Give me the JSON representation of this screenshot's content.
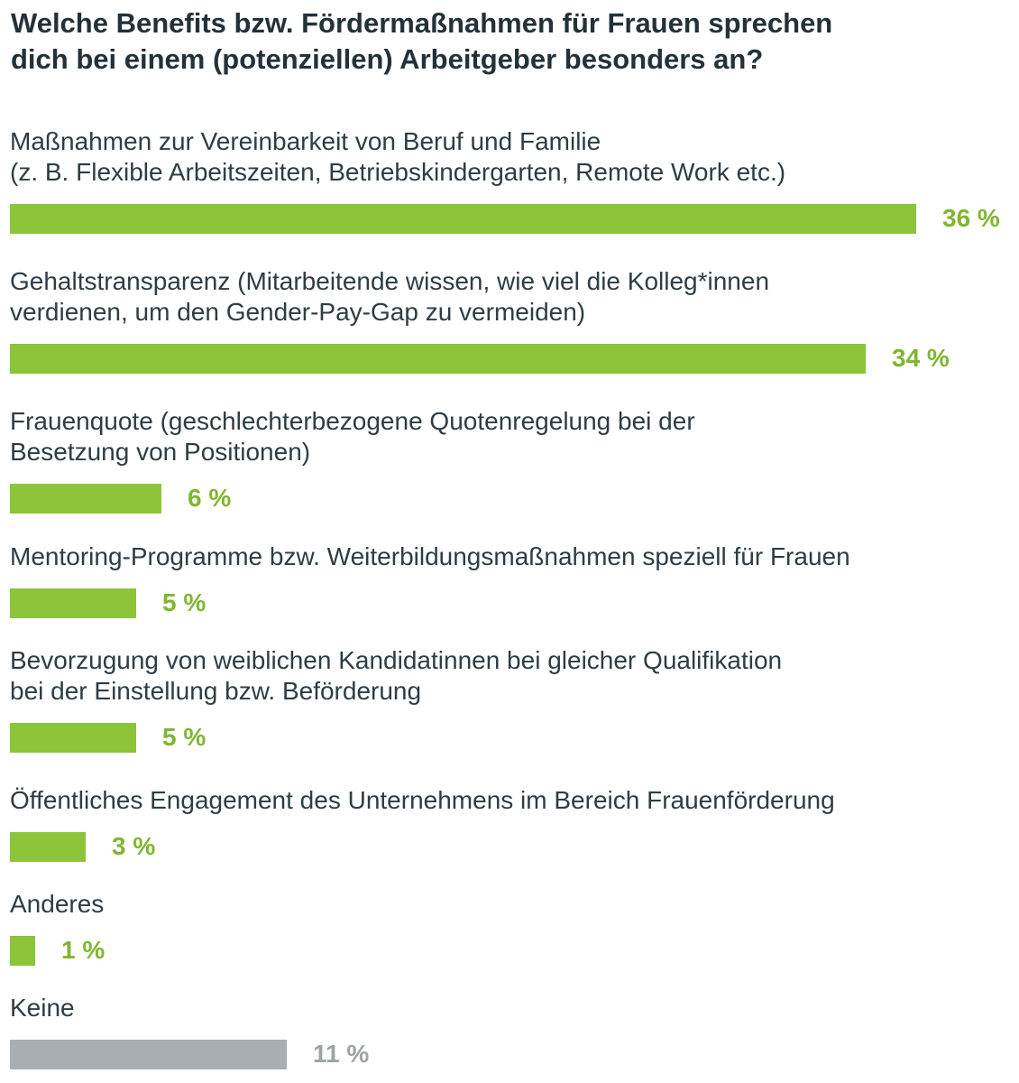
{
  "title_lines": [
    "Welche Benefits bzw. Fördermaßnahmen für Frauen sprechen",
    "dich bei einem (potenziellen) Arbeitgeber besonders an?"
  ],
  "colors": {
    "green": "#8cc43a",
    "gray": "#a9aeb3"
  },
  "chart_data": {
    "type": "bar",
    "orientation": "horizontal",
    "title": "Welche Benefits bzw. Fördermaßnahmen für Frauen sprechen dich bei einem (potenziellen) Arbeitgeber besonders an?",
    "unit": "%",
    "categories": [
      [
        "Maßnahmen zur Vereinbarkeit von Beruf und Familie",
        "(z. B. Flexible Arbeitszeiten, Betriebskindergarten, Remote Work etc.)"
      ],
      [
        "Gehaltstransparenz (Mitarbeitende wissen, wie viel die Kolleg*innen",
        "verdienen, um den Gender-Pay-Gap zu vermeiden)"
      ],
      [
        "Frauenquote (geschlechterbezogene Quotenregelung bei der",
        "Besetzung von Positionen)"
      ],
      [
        "Mentoring-Programme bzw. Weiterbildungsmaßnahmen speziell für Frauen"
      ],
      [
        "Bevorzugung von weiblichen Kandidatinnen bei gleicher Qualifikation",
        "bei der Einstellung bzw. Beförderung"
      ],
      [
        "Öffentliches Engagement des Unternehmens im Bereich Frauenförderung"
      ],
      [
        "Anderes"
      ],
      [
        "Keine"
      ]
    ],
    "values": [
      36,
      34,
      6,
      5,
      5,
      3,
      1,
      11
    ],
    "value_labels": [
      "36 %",
      "34 %",
      "6 %",
      "5 %",
      "5 %",
      "3 %",
      "1 %",
      "11 %"
    ],
    "bar_colors": [
      "green",
      "green",
      "green",
      "green",
      "green",
      "green",
      "green",
      "gray"
    ],
    "xlim": [
      0,
      36
    ],
    "grid": false,
    "legend": "none"
  }
}
